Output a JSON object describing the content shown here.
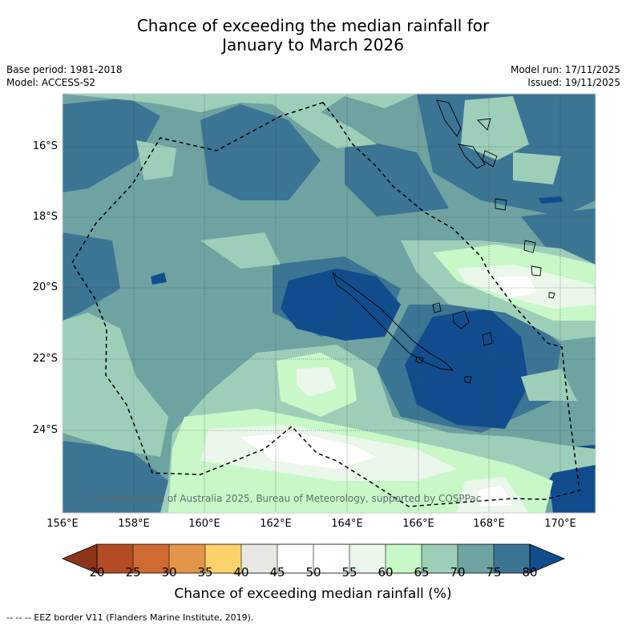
{
  "title": {
    "line1": "Chance of exceeding the median rainfall for",
    "line2": "January to March 2026"
  },
  "meta": {
    "base_period": "Base period: 1981-2018",
    "model": "Model: ACCESS-S2",
    "model_run": "Model run: 17/11/2025",
    "issued": "Issued: 19/11/2025"
  },
  "map": {
    "lat_labels": [
      "16°S",
      "18°S",
      "20°S",
      "22°S",
      "24°S"
    ],
    "lon_labels": [
      "156°E",
      "158°E",
      "160°E",
      "162°E",
      "164°E",
      "166°E",
      "168°E",
      "170°E"
    ],
    "credit": "© Commonwealth of Australia 2025, Bureau of Meteorology, supported by COSPPac",
    "extent": {
      "lon_min": 156,
      "lon_max": 171,
      "lat_min": -26,
      "lat_max": -14.5
    }
  },
  "colorbar": {
    "title": "Chance of exceeding median rainfall (%)",
    "ticks": [
      "20",
      "25",
      "30",
      "35",
      "40",
      "45",
      "50",
      "55",
      "60",
      "65",
      "70",
      "75",
      "80"
    ],
    "colors": [
      "#8c3519",
      "#b34c24",
      "#cf6a33",
      "#e3954a",
      "#fcd26a",
      "#e8e8e2",
      "#ffffff",
      "#ffffff",
      "#eaf7ea",
      "#c8f8c8",
      "#9dcfb8",
      "#6ea3a2",
      "#3c7494",
      "#114d8d"
    ]
  },
  "legend": {
    "eez": "--  --  -- EEZ border V11 (Flanders Marine Institute, 2019)."
  }
}
